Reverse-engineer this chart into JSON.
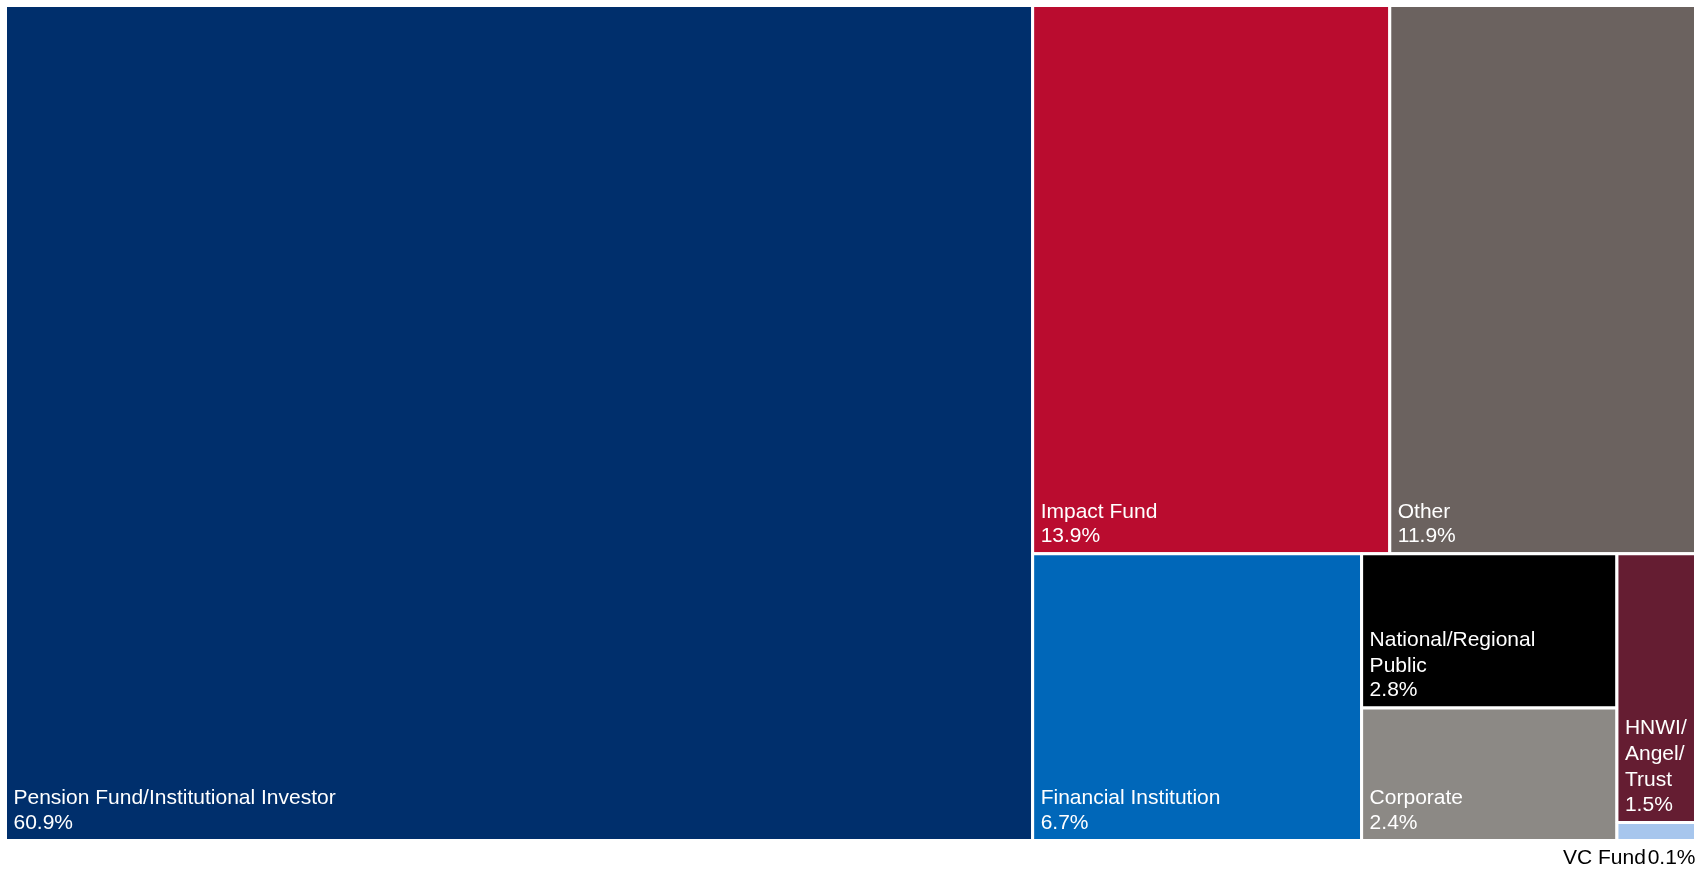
{
  "chart_data": {
    "type": "other",
    "categories": [
      "Pension Fund/Institutional Investor",
      "Impact Fund",
      "Other",
      "Financial Institution",
      "National/Regional Public",
      "Corporate",
      "HNWI/Angel/Trust",
      "VC Fund"
    ],
    "values": [
      60.9,
      13.9,
      11.9,
      6.7,
      2.8,
      2.4,
      1.5,
      0.1
    ],
    "value_labels": [
      "60.9%",
      "13.9%",
      "11.9%",
      "6.7%",
      "2.8%",
      "2.4%",
      "1.5%",
      "0.1%"
    ],
    "colors": [
      "#002f6c",
      "#ba0c2f",
      "#6b625f",
      "#0067b9",
      "#000000",
      "#8c8985",
      "#651d32",
      "#a7c6ed"
    ]
  }
}
